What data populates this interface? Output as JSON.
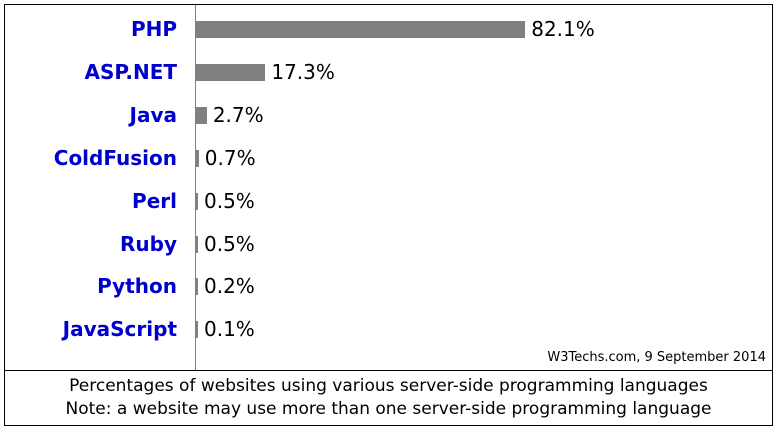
{
  "chart_data": {
    "type": "bar",
    "categories": [
      "PHP",
      "ASP.NET",
      "Java",
      "ColdFusion",
      "Perl",
      "Ruby",
      "Python",
      "JavaScript"
    ],
    "values": [
      82.1,
      17.3,
      2.7,
      0.7,
      0.5,
      0.5,
      0.2,
      0.1
    ],
    "value_labels": [
      "82.1%",
      "17.3%",
      "2.7%",
      "0.7%",
      "0.5%",
      "0.5%",
      "0.2%",
      "0.1%"
    ],
    "title": "",
    "xlabel": "",
    "ylabel": "",
    "xlim": [
      0,
      100
    ],
    "grid": false,
    "orientation": "horizontal",
    "colors": {
      "bar": "#808080",
      "category_label": "#0000cc"
    }
  },
  "credit": "W3Techs.com, 9 September 2014",
  "caption": {
    "line1": "Percentages of websites using various server-side programming languages",
    "line2": "Note: a website may use more than one server-side programming language"
  }
}
